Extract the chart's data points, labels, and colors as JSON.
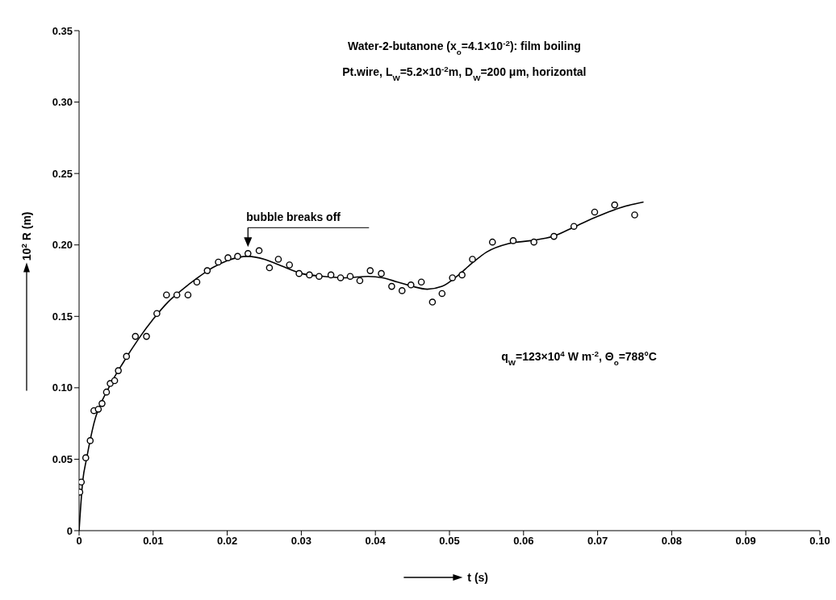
{
  "chart_data": {
    "type": "scatter",
    "title": "Water-2-butanone (x$_{o}$=4.1×10$^{-2}$): film boiling",
    "subtitle": "Pt.wire, L$_{W}$=5.2×10$^{-2}$m, D$_{W}$=200 μm, horizontal",
    "xlabel": "t (s)",
    "ylabel": "10$^{2}$ R (m)",
    "annotations": [
      {
        "text": "bubble breaks off",
        "x": 0.0228,
        "y": 0.194
      },
      "q$_{W}$=123×10$^{4}$ W m$^{-2}$, Θ$_{o}$=788°C"
    ],
    "xlim": [
      0,
      0.1
    ],
    "xticks": [
      0,
      0.01,
      0.02,
      0.03,
      0.04,
      0.05,
      0.06,
      0.07,
      0.08,
      0.09,
      {
        "value": 0.1,
        "label": "0.10"
      }
    ],
    "ylim": [
      0,
      0.35
    ],
    "yticks": [
      0,
      0.05,
      {
        "value": 0.1,
        "label": "0.10"
      },
      0.15,
      {
        "value": 0.2,
        "label": "0.20"
      },
      0.25,
      {
        "value": 0.3,
        "label": "0.30"
      },
      0.35
    ],
    "series": [
      {
        "color": "#000000",
        "marker": "circle",
        "x": [
          0.0001,
          0.0003,
          0.0009,
          0.0015,
          0.002,
          0.0026,
          0.0031,
          0.0037,
          0.0042,
          0.0048,
          0.0053,
          0.0064,
          0.0076,
          0.0091,
          0.0105,
          0.0118,
          0.0132,
          0.0147,
          0.0159,
          0.0173,
          0.0188,
          0.0201,
          0.0214,
          0.0228,
          0.0243,
          0.0257,
          0.0269,
          0.0284,
          0.0297,
          0.0311,
          0.0324,
          0.034,
          0.0353,
          0.0366,
          0.0379,
          0.0393,
          0.0408,
          0.0422,
          0.0436,
          0.0448,
          0.0462,
          0.0477,
          0.049,
          0.0504,
          0.0517,
          0.0531,
          0.0558,
          0.0586,
          0.0614,
          0.0641,
          0.0668,
          0.0696,
          0.0723,
          0.075
        ],
        "values": [
          0.027,
          0.034,
          0.051,
          0.063,
          0.084,
          0.085,
          0.089,
          0.097,
          0.103,
          0.105,
          0.112,
          0.122,
          0.136,
          0.136,
          0.152,
          0.165,
          0.165,
          0.165,
          0.174,
          0.182,
          0.188,
          0.191,
          0.192,
          0.194,
          0.196,
          0.184,
          0.19,
          0.186,
          0.18,
          0.179,
          0.178,
          0.179,
          0.177,
          0.178,
          0.175,
          0.182,
          0.18,
          0.171,
          0.168,
          0.172,
          0.174,
          0.16,
          0.166,
          0.177,
          0.179,
          0.19,
          0.202,
          0.203,
          0.202,
          0.206,
          0.213,
          0.223,
          0.228,
          0.221
        ]
      },
      {
        "type": "line",
        "color": "#000000",
        "marker": "none",
        "line_style": "solid",
        "x": [
          0,
          0.0005,
          0.001,
          0.002,
          0.004,
          0.006,
          0.008,
          0.01,
          0.012,
          0.014,
          0.016,
          0.018,
          0.02,
          0.0228,
          0.025,
          0.027,
          0.03,
          0.033,
          0.036,
          0.039,
          0.041,
          0.043,
          0.045,
          0.047,
          0.049,
          0.051,
          0.053,
          0.055,
          0.058,
          0.061,
          0.064,
          0.067,
          0.07,
          0.073,
          0.0762
        ],
        "values": [
          0,
          0.035,
          0.05,
          0.075,
          0.1,
          0.118,
          0.134,
          0.148,
          0.16,
          0.169,
          0.177,
          0.184,
          0.189,
          0.192,
          0.19,
          0.186,
          0.18,
          0.178,
          0.177,
          0.178,
          0.177,
          0.174,
          0.171,
          0.169,
          0.171,
          0.178,
          0.187,
          0.195,
          0.201,
          0.203,
          0.206,
          0.213,
          0.22,
          0.226,
          0.23
        ]
      }
    ]
  }
}
